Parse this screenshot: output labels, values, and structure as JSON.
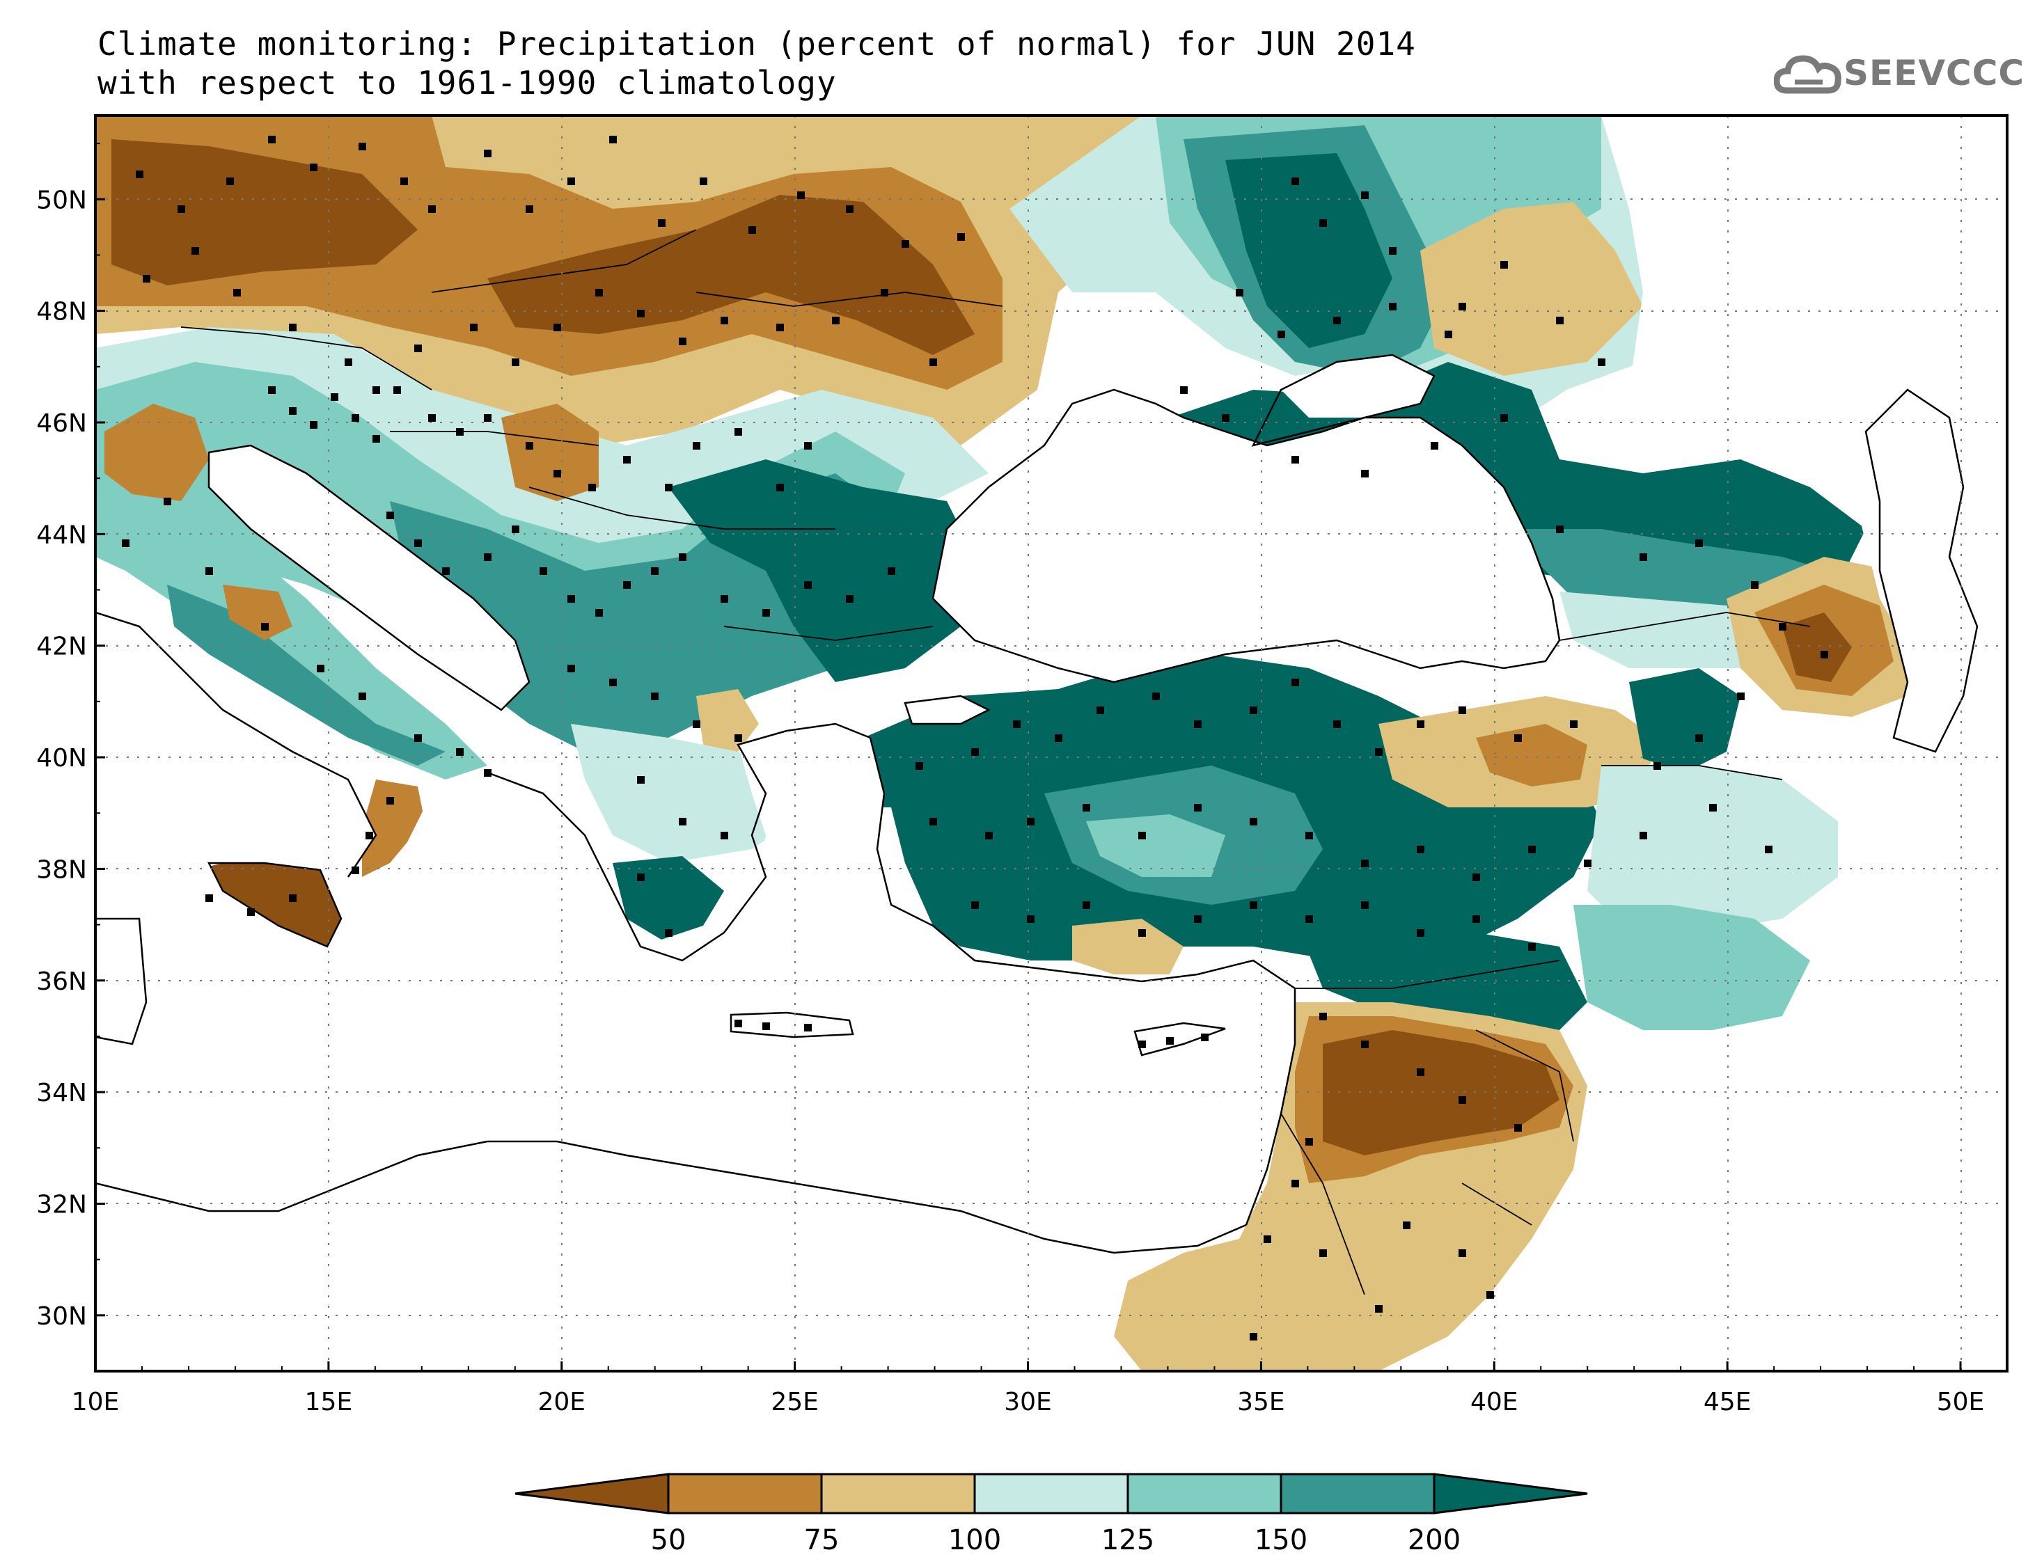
{
  "title": {
    "line1": "Climate monitoring: Precipitation (percent of normal) for JUN 2014",
    "line2": "with respect to 1961-1990 climatology"
  },
  "logo": {
    "text": "SEEVCCC",
    "icon": "cloud-icon",
    "color": "#7a7a7a"
  },
  "map_axes": {
    "lon_ticks": [
      "10E",
      "15E",
      "20E",
      "25E",
      "30E",
      "35E",
      "40E",
      "45E",
      "50E"
    ],
    "lat_ticks": [
      "50N",
      "48N",
      "46N",
      "44N",
      "42N",
      "40N",
      "38N",
      "36N",
      "34N",
      "32N",
      "30N"
    ],
    "lon_range": [
      10,
      51
    ],
    "lat_range": [
      29,
      51.5
    ]
  },
  "colorbar": {
    "labels": [
      "50",
      "75",
      "100",
      "125",
      "150",
      "200"
    ],
    "colors": [
      "#8b5012",
      "#c08333",
      "#dfc27d",
      "#c7eae5",
      "#80cdc1",
      "#35978f",
      "#01665e"
    ]
  },
  "regions": {
    "sea_color": "#ffffff",
    "no_data_color": "#ffffff"
  }
}
